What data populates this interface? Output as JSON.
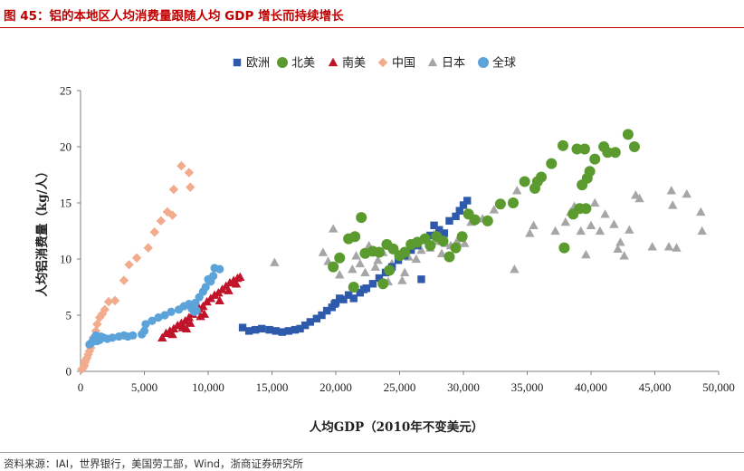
{
  "figure": {
    "title": "图 45：铝的本地区人均消费量跟随人均 GDP 增长而持续增长",
    "source": "资料来源：IAI，世界银行，美国劳工部，Wind，浙商证券研究所"
  },
  "colors": {
    "title": "#c00000",
    "europe": "#2e5aac",
    "north_america": "#5b9a2e",
    "south_america": "#c0142a",
    "china": "#f2ab8c",
    "japan": "#a6a6a6",
    "world": "#5ba3d9"
  },
  "chart_data": {
    "type": "scatter",
    "title": "",
    "xlabel": "人均GDP（2010年不变美元）",
    "ylabel": "人均铝消费量（kg/人）",
    "xlim": [
      0,
      50000
    ],
    "ylim": [
      0,
      25
    ],
    "xticks": [
      0,
      5000,
      10000,
      15000,
      20000,
      25000,
      30000,
      35000,
      40000,
      45000,
      50000
    ],
    "xtick_labels": [
      "0",
      "5,000",
      "10,000",
      "15,000",
      "20,000",
      "25,000",
      "30,000",
      "35,000",
      "40,000",
      "45,000",
      "50,000"
    ],
    "yticks": [
      0,
      5,
      10,
      15,
      20,
      25
    ],
    "ytick_labels": [
      "0",
      "5",
      "10",
      "15",
      "20",
      "25"
    ],
    "grid": false,
    "legend_position": "top",
    "series": [
      {
        "name": "欧洲",
        "marker": "square",
        "color_key": "europe",
        "points": [
          [
            12700,
            3.9
          ],
          [
            13200,
            3.6
          ],
          [
            13700,
            3.7
          ],
          [
            14200,
            3.8
          ],
          [
            14800,
            3.7
          ],
          [
            15300,
            3.6
          ],
          [
            15800,
            3.5
          ],
          [
            16300,
            3.6
          ],
          [
            16800,
            3.7
          ],
          [
            17200,
            3.8
          ],
          [
            17600,
            4.1
          ],
          [
            18000,
            4.4
          ],
          [
            18500,
            4.7
          ],
          [
            18900,
            5.0
          ],
          [
            19300,
            5.4
          ],
          [
            19700,
            5.7
          ],
          [
            20000,
            6.1
          ],
          [
            20300,
            6.5
          ],
          [
            20600,
            6.4
          ],
          [
            21000,
            6.8
          ],
          [
            21400,
            6.5
          ],
          [
            21900,
            7.0
          ],
          [
            22400,
            7.4
          ],
          [
            22900,
            7.8
          ],
          [
            23400,
            8.3
          ],
          [
            23900,
            8.8
          ],
          [
            24400,
            9.3
          ],
          [
            24900,
            9.9
          ],
          [
            25400,
            10.3
          ],
          [
            25900,
            10.8
          ],
          [
            26400,
            11.2
          ],
          [
            26900,
            11.7
          ],
          [
            27400,
            12.1
          ],
          [
            27700,
            13.0
          ],
          [
            28100,
            12.6
          ],
          [
            28500,
            12.3
          ],
          [
            28900,
            13.4
          ],
          [
            29400,
            13.8
          ],
          [
            29700,
            14.3
          ],
          [
            30000,
            14.8
          ],
          [
            30300,
            15.2
          ],
          [
            26700,
            8.2
          ],
          [
            19900,
            6.0
          ],
          [
            22200,
            7.3
          ]
        ]
      },
      {
        "name": "北美",
        "marker": "circle",
        "color_key": "north_america",
        "points": [
          [
            19800,
            9.3
          ],
          [
            20300,
            10.1
          ],
          [
            21000,
            11.8
          ],
          [
            21500,
            12.0
          ],
          [
            22000,
            13.7
          ],
          [
            22300,
            10.5
          ],
          [
            22900,
            10.7
          ],
          [
            23400,
            10.6
          ],
          [
            21400,
            7.5
          ],
          [
            23700,
            7.8
          ],
          [
            24000,
            11.3
          ],
          [
            24500,
            10.9
          ],
          [
            25000,
            10.3
          ],
          [
            25400,
            10.6
          ],
          [
            25900,
            11.3
          ],
          [
            26400,
            11.5
          ],
          [
            27000,
            11.8
          ],
          [
            27400,
            11.2
          ],
          [
            27900,
            12.0
          ],
          [
            28400,
            11.6
          ],
          [
            28900,
            10.2
          ],
          [
            29400,
            11.0
          ],
          [
            29900,
            12.0
          ],
          [
            30400,
            14.0
          ],
          [
            30900,
            13.5
          ],
          [
            31900,
            13.4
          ],
          [
            32900,
            14.9
          ],
          [
            33900,
            15.0
          ],
          [
            34800,
            16.9
          ],
          [
            35600,
            16.3
          ],
          [
            35800,
            16.9
          ],
          [
            36100,
            17.3
          ],
          [
            36900,
            18.5
          ],
          [
            37800,
            20.1
          ],
          [
            37900,
            11.0
          ],
          [
            38600,
            14.0
          ],
          [
            38900,
            19.8
          ],
          [
            39300,
            16.6
          ],
          [
            39500,
            19.8
          ],
          [
            39700,
            17.2
          ],
          [
            39900,
            17.8
          ],
          [
            40300,
            18.9
          ],
          [
            41000,
            20.0
          ],
          [
            41300,
            19.5
          ],
          [
            41900,
            19.5
          ],
          [
            42900,
            21.1
          ],
          [
            43400,
            20.0
          ],
          [
            39600,
            14.5
          ],
          [
            39100,
            14.5
          ],
          [
            24200,
            9.0
          ]
        ]
      },
      {
        "name": "南美",
        "marker": "triangle",
        "color_key": "south_america",
        "points": [
          [
            6400,
            3.0
          ],
          [
            6700,
            3.4
          ],
          [
            7000,
            3.6
          ],
          [
            7300,
            3.8
          ],
          [
            7600,
            4.1
          ],
          [
            7900,
            4.3
          ],
          [
            8200,
            4.5
          ],
          [
            8500,
            4.8
          ],
          [
            8800,
            5.1
          ],
          [
            9000,
            5.4
          ],
          [
            9300,
            5.6
          ],
          [
            9600,
            5.8
          ],
          [
            9900,
            6.2
          ],
          [
            10200,
            6.5
          ],
          [
            10500,
            6.8
          ],
          [
            10800,
            7.0
          ],
          [
            11100,
            7.3
          ],
          [
            11400,
            7.6
          ],
          [
            11700,
            7.9
          ],
          [
            12000,
            8.1
          ],
          [
            12300,
            8.3
          ],
          [
            12500,
            8.4
          ],
          [
            8000,
            3.9
          ],
          [
            8600,
            4.3
          ],
          [
            9400,
            4.9
          ],
          [
            10900,
            6.3
          ],
          [
            11600,
            7.2
          ],
          [
            12200,
            7.8
          ],
          [
            7200,
            3.3
          ],
          [
            8300,
            3.8
          ],
          [
            9700,
            5.1
          ]
        ]
      },
      {
        "name": "中国",
        "marker": "diamond",
        "color_key": "china",
        "points": [
          [
            200,
            0.3
          ],
          [
            300,
            0.5
          ],
          [
            350,
            0.8
          ],
          [
            400,
            1.0
          ],
          [
            500,
            1.2
          ],
          [
            600,
            1.5
          ],
          [
            700,
            1.8
          ],
          [
            800,
            2.1
          ],
          [
            900,
            2.5
          ],
          [
            1000,
            3.0
          ],
          [
            1200,
            3.6
          ],
          [
            1300,
            4.2
          ],
          [
            1500,
            4.8
          ],
          [
            1700,
            5.1
          ],
          [
            1900,
            5.5
          ],
          [
            2200,
            6.2
          ],
          [
            2700,
            6.3
          ],
          [
            3400,
            8.1
          ],
          [
            3800,
            9.5
          ],
          [
            4400,
            10.1
          ],
          [
            5300,
            11.0
          ],
          [
            5800,
            12.4
          ],
          [
            6300,
            13.4
          ],
          [
            6800,
            14.2
          ],
          [
            7200,
            13.9
          ],
          [
            7300,
            16.2
          ],
          [
            7900,
            18.3
          ],
          [
            8500,
            17.7
          ],
          [
            8600,
            16.4
          ],
          [
            100,
            0.2
          ]
        ]
      },
      {
        "name": "日本",
        "marker": "triangle",
        "color_key": "japan",
        "points": [
          [
            15200,
            9.7
          ],
          [
            19000,
            10.6
          ],
          [
            19400,
            9.8
          ],
          [
            19800,
            12.7
          ],
          [
            20300,
            8.6
          ],
          [
            21300,
            9.1
          ],
          [
            21600,
            10.3
          ],
          [
            21900,
            9.6
          ],
          [
            22300,
            8.8
          ],
          [
            22600,
            11.2
          ],
          [
            23100,
            9.3
          ],
          [
            23300,
            9.9
          ],
          [
            23700,
            10.6
          ],
          [
            24100,
            8.0
          ],
          [
            24400,
            9.6
          ],
          [
            25200,
            8.1
          ],
          [
            25400,
            8.8
          ],
          [
            25700,
            10.2
          ],
          [
            26300,
            10.0
          ],
          [
            26700,
            10.8
          ],
          [
            27400,
            11.0
          ],
          [
            27700,
            12.2
          ],
          [
            28000,
            11.6
          ],
          [
            28300,
            10.5
          ],
          [
            28600,
            11.4
          ],
          [
            29000,
            11.2
          ],
          [
            29500,
            11.6
          ],
          [
            30100,
            11.4
          ],
          [
            30600,
            13.3
          ],
          [
            31500,
            13.6
          ],
          [
            32400,
            14.4
          ],
          [
            34000,
            9.1
          ],
          [
            34200,
            16.1
          ],
          [
            35200,
            12.3
          ],
          [
            35500,
            13.0
          ],
          [
            37200,
            12.5
          ],
          [
            38000,
            13.3
          ],
          [
            38400,
            14.2
          ],
          [
            38700,
            14.7
          ],
          [
            39200,
            12.5
          ],
          [
            39600,
            10.4
          ],
          [
            40000,
            13.0
          ],
          [
            40300,
            15.0
          ],
          [
            40700,
            12.5
          ],
          [
            41100,
            14.0
          ],
          [
            41800,
            13.1
          ],
          [
            42100,
            10.9
          ],
          [
            42300,
            11.5
          ],
          [
            42600,
            10.3
          ],
          [
            43000,
            12.6
          ],
          [
            43500,
            15.7
          ],
          [
            43800,
            15.4
          ],
          [
            44800,
            11.1
          ],
          [
            46100,
            11.1
          ],
          [
            46300,
            16.1
          ],
          [
            46400,
            14.8
          ],
          [
            46700,
            11.0
          ],
          [
            47500,
            15.8
          ],
          [
            48600,
            14.2
          ],
          [
            48700,
            12.5
          ]
        ]
      },
      {
        "name": "全球",
        "marker": "circle",
        "color_key": "world",
        "points": [
          [
            700,
            2.4
          ],
          [
            900,
            2.6
          ],
          [
            1000,
            2.8
          ],
          [
            1100,
            3.0
          ],
          [
            1200,
            2.9
          ],
          [
            1300,
            2.7
          ],
          [
            1500,
            2.8
          ],
          [
            1800,
            3.0
          ],
          [
            2100,
            2.9
          ],
          [
            2500,
            3.0
          ],
          [
            3000,
            3.1
          ],
          [
            3400,
            3.2
          ],
          [
            3700,
            3.1
          ],
          [
            4100,
            3.2
          ],
          [
            4800,
            3.3
          ],
          [
            5000,
            3.6
          ],
          [
            5100,
            4.2
          ],
          [
            5600,
            4.5
          ],
          [
            6100,
            4.8
          ],
          [
            6600,
            5.0
          ],
          [
            7100,
            5.3
          ],
          [
            7700,
            5.5
          ],
          [
            8100,
            5.8
          ],
          [
            8500,
            6.0
          ],
          [
            8700,
            5.6
          ],
          [
            9000,
            6.1
          ],
          [
            9300,
            6.6
          ],
          [
            9600,
            7.1
          ],
          [
            9800,
            7.5
          ],
          [
            10000,
            8.2
          ],
          [
            10200,
            8.0
          ],
          [
            10400,
            8.5
          ],
          [
            10500,
            9.2
          ],
          [
            10900,
            9.1
          ],
          [
            9100,
            5.4
          ],
          [
            8900,
            5.3
          ],
          [
            1200,
            3.2
          ],
          [
            1600,
            3.1
          ]
        ]
      }
    ]
  }
}
